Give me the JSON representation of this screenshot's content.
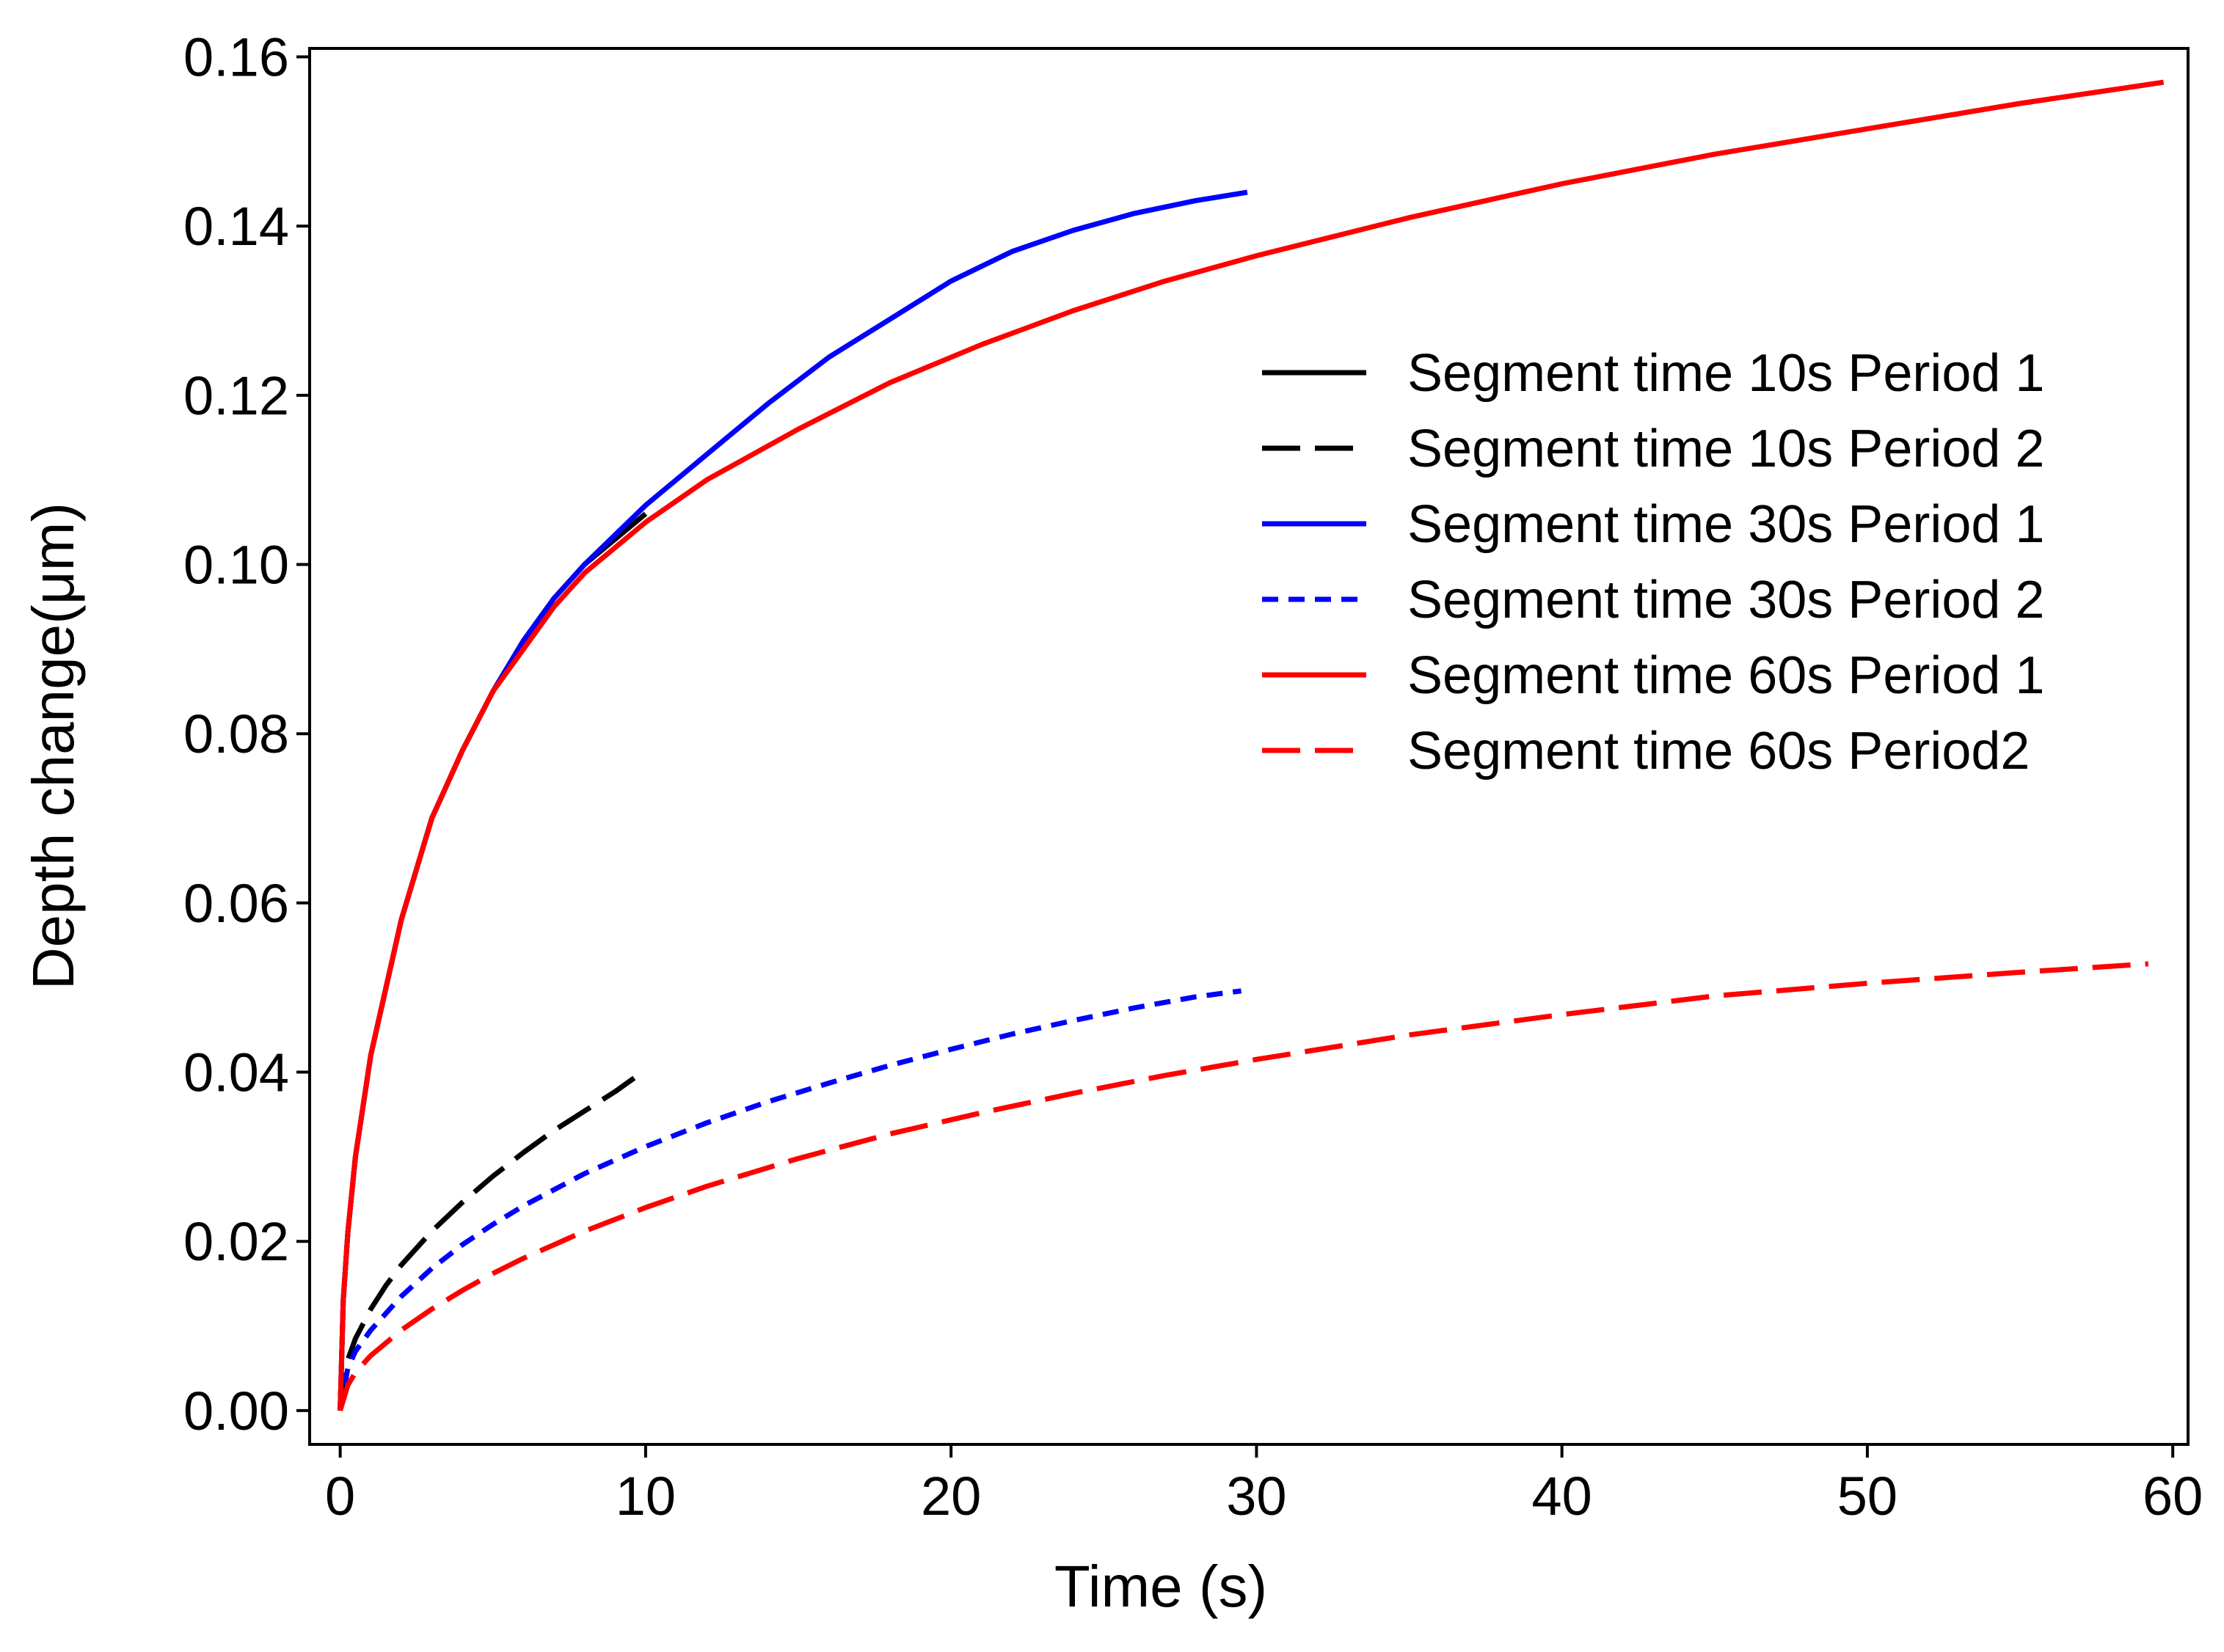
{
  "chart_data": {
    "type": "line",
    "title": "",
    "xlabel": "Time (s)",
    "ylabel": "Depth change(μm)",
    "xlim": [
      -1,
      60.5
    ],
    "ylim": [
      -0.004,
      0.161
    ],
    "xticks": [
      0,
      10,
      20,
      30,
      40,
      50,
      60
    ],
    "xtick_labels": [
      "0",
      "10",
      "20",
      "30",
      "40",
      "50",
      "60"
    ],
    "yticks": [
      0.0,
      0.02,
      0.04,
      0.06,
      0.08,
      0.1,
      0.12,
      0.14,
      0.16
    ],
    "ytick_labels": [
      "0.00",
      "0.02",
      "0.04",
      "0.06",
      "0.08",
      "0.10",
      "0.12",
      "0.14",
      "0.16"
    ],
    "grid": false,
    "legend_position": "center-right",
    "series": [
      {
        "name": "Segment time 10s Period 1",
        "color": "#000000",
        "dash": "solid",
        "x": [
          0,
          0.1,
          0.25,
          0.5,
          1,
          1.5,
          2,
          3,
          4,
          5,
          6,
          7,
          8,
          9,
          10
        ],
        "y": [
          0,
          0.013,
          0.021,
          0.03,
          0.042,
          0.05,
          0.058,
          0.07,
          0.078,
          0.085,
          0.091,
          0.096,
          0.1,
          0.103,
          0.106
        ]
      },
      {
        "name": "Segment time 10s Period 2",
        "color": "#000000",
        "dash": "longdash",
        "x": [
          0,
          0.25,
          0.5,
          1,
          1.5,
          2,
          3,
          4,
          5,
          6,
          7,
          8,
          9,
          9.7
        ],
        "y": [
          0,
          0.006,
          0.0085,
          0.012,
          0.0148,
          0.0172,
          0.0212,
          0.0246,
          0.0277,
          0.0305,
          0.0331,
          0.0354,
          0.0377,
          0.0395
        ]
      },
      {
        "name": "Segment time 30s Period 1",
        "color": "#0000ff",
        "dash": "solid",
        "x": [
          0,
          0.1,
          0.25,
          0.5,
          1,
          1.5,
          2,
          3,
          4,
          5,
          6,
          7,
          8,
          10,
          12,
          14,
          16,
          18,
          20,
          22,
          24,
          26,
          28,
          29.7
        ],
        "y": [
          0,
          0.013,
          0.021,
          0.03,
          0.042,
          0.05,
          0.058,
          0.07,
          0.078,
          0.085,
          0.091,
          0.096,
          0.1,
          0.107,
          0.113,
          0.119,
          0.1245,
          0.129,
          0.1335,
          0.137,
          0.1395,
          0.1415,
          0.143,
          0.144
        ]
      },
      {
        "name": "Segment time 30s Period 2",
        "color": "#0000ff",
        "dash": "shortdash",
        "x": [
          0,
          0.25,
          0.5,
          1,
          2,
          3,
          4,
          5,
          6,
          8,
          10,
          12,
          14,
          16,
          18,
          20,
          22,
          24,
          26,
          28,
          29.5
        ],
        "y": [
          0,
          0.005,
          0.007,
          0.0095,
          0.0135,
          0.0168,
          0.0196,
          0.022,
          0.0242,
          0.028,
          0.0312,
          0.034,
          0.0365,
          0.0387,
          0.0408,
          0.0427,
          0.0445,
          0.0461,
          0.0476,
          0.0489,
          0.0496
        ]
      },
      {
        "name": "Segment time 60s Period 1",
        "color": "#ff0000",
        "dash": "solid",
        "x": [
          0,
          0.1,
          0.25,
          0.5,
          1,
          1.5,
          2,
          3,
          4,
          5,
          6,
          7,
          8,
          10,
          12,
          15,
          18,
          21,
          24,
          27,
          30,
          35,
          40,
          45,
          50,
          55,
          59.7
        ],
        "y": [
          0,
          0.013,
          0.021,
          0.03,
          0.042,
          0.05,
          0.058,
          0.07,
          0.078,
          0.085,
          0.09,
          0.095,
          0.099,
          0.105,
          0.11,
          0.116,
          0.1215,
          0.126,
          0.13,
          0.1335,
          0.1365,
          0.141,
          0.145,
          0.1485,
          0.1515,
          0.1545,
          0.157
        ]
      },
      {
        "name": "Segment time 60s Period2",
        "color": "#ff0000",
        "dash": "longdash",
        "x": [
          0,
          0.25,
          0.5,
          1,
          2,
          3,
          4,
          5,
          6,
          8,
          10,
          12,
          15,
          18,
          21,
          24,
          27,
          30,
          35,
          40,
          45,
          50,
          55,
          59.2
        ],
        "y": [
          0,
          0.003,
          0.0045,
          0.0065,
          0.0095,
          0.012,
          0.0142,
          0.0162,
          0.018,
          0.0212,
          0.024,
          0.0265,
          0.0298,
          0.0327,
          0.0352,
          0.0375,
          0.0396,
          0.0415,
          0.0444,
          0.0468,
          0.049,
          0.0505,
          0.0518,
          0.0528
        ]
      }
    ]
  }
}
